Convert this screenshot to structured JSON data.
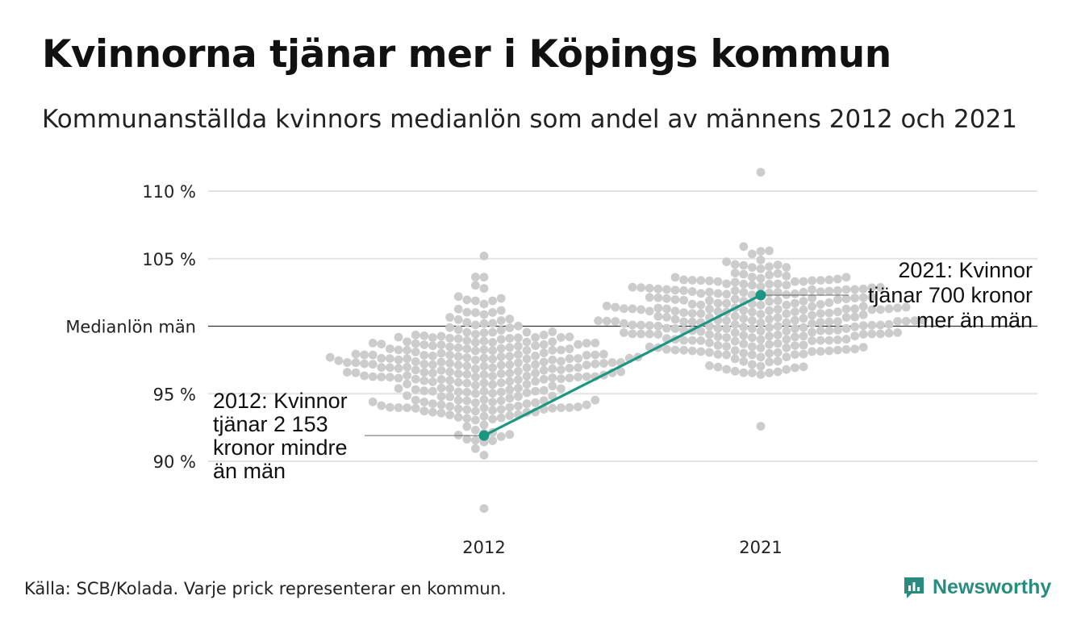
{
  "header": {
    "title": "Kvinnorna tjänar mer i Köpings kommun",
    "subtitle": "Kommunanställda kvinnors medianlön som andel av männens 2012 och 2021"
  },
  "footer": {
    "source": "Källa: SCB/Kolada. Varje prick representerar en kommun.",
    "brand": "Newsworthy"
  },
  "colors": {
    "highlight": "#1a9683",
    "dots": "#cccccc",
    "grid": "#e3e3e3",
    "baseline": "#333333",
    "brand": "#2a8c7e"
  },
  "chart_data": {
    "type": "scatter",
    "subtype": "beeswarm",
    "categories": [
      "2012",
      "2021"
    ],
    "y_ticks": [
      {
        "value": 90,
        "label": "90 %"
      },
      {
        "value": 95,
        "label": "95 %"
      },
      {
        "value": 100,
        "label": "Medianlön män"
      },
      {
        "value": 105,
        "label": "105 %"
      },
      {
        "value": 110,
        "label": "110 %"
      }
    ],
    "ylim": [
      86,
      111.5
    ],
    "grid": true,
    "swarm": [
      {
        "category": "2012",
        "center": 96.8,
        "spread": 2.6,
        "min": 86.5,
        "max": 105.2,
        "count": 290
      },
      {
        "category": "2021",
        "center": 100.5,
        "spread": 2.2,
        "min": 92.6,
        "max": 111.4,
        "count": 290
      }
    ],
    "highlight": {
      "name": "Köping",
      "points": [
        {
          "x": "2012",
          "y": 91.9
        },
        {
          "x": "2021",
          "y": 102.3
        }
      ]
    },
    "annotations": [
      {
        "x": "2012",
        "lines": [
          "2012: Kvinnor",
          "tjänar 2 153",
          "kronor mindre",
          "än män"
        ]
      },
      {
        "x": "2021",
        "lines": [
          "2021: Kvinnor",
          "tjänar 700 kronor",
          "mer än män"
        ]
      }
    ]
  }
}
